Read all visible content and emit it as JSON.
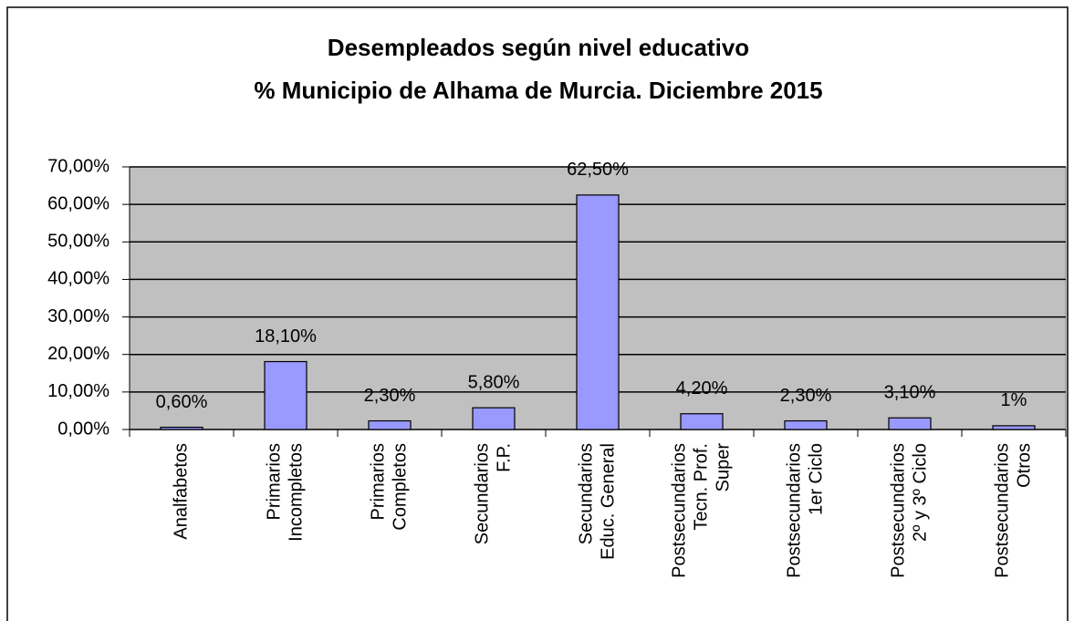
{
  "chart_data": {
    "type": "bar",
    "title": [
      "Desempleados según nivel educativo",
      "% Municipio de Alhama de Murcia. Diciembre 2015"
    ],
    "categories": [
      [
        "Analfabetos"
      ],
      [
        "Primarios",
        "Incompletos"
      ],
      [
        "Primarios",
        "Completos"
      ],
      [
        "Secundarios",
        "F.P."
      ],
      [
        "Secundarios",
        "Educ. General"
      ],
      [
        "Postsecundarios",
        "Tecn. Prof.",
        "Super"
      ],
      [
        "Postsecundarios",
        "1er Ciclo"
      ],
      [
        "Postsecundarios",
        "2º y 3º Ciclo"
      ],
      [
        "Postsecundarios",
        "Otros"
      ]
    ],
    "values": [
      0.6,
      18.1,
      2.3,
      5.8,
      62.5,
      4.2,
      2.3,
      3.1,
      1
    ],
    "value_labels": [
      "0,60%",
      "18,10%",
      "2,30%",
      "5,80%",
      "62,50%",
      "4,20%",
      "2,30%",
      "3,10%",
      "1%"
    ],
    "color": "#9999ff",
    "ylim": [
      0,
      70
    ],
    "yticks": [
      {
        "value": 0,
        "label": "0,00%"
      },
      {
        "value": 10,
        "label": "10,00%"
      },
      {
        "value": 20,
        "label": "20,00%"
      },
      {
        "value": 30,
        "label": "30,00%"
      },
      {
        "value": 40,
        "label": "40,00%"
      },
      {
        "value": 50,
        "label": "50,00%"
      },
      {
        "value": 60,
        "label": "60,00%"
      },
      {
        "value": 70,
        "label": "70,00%"
      }
    ],
    "grid": true
  }
}
